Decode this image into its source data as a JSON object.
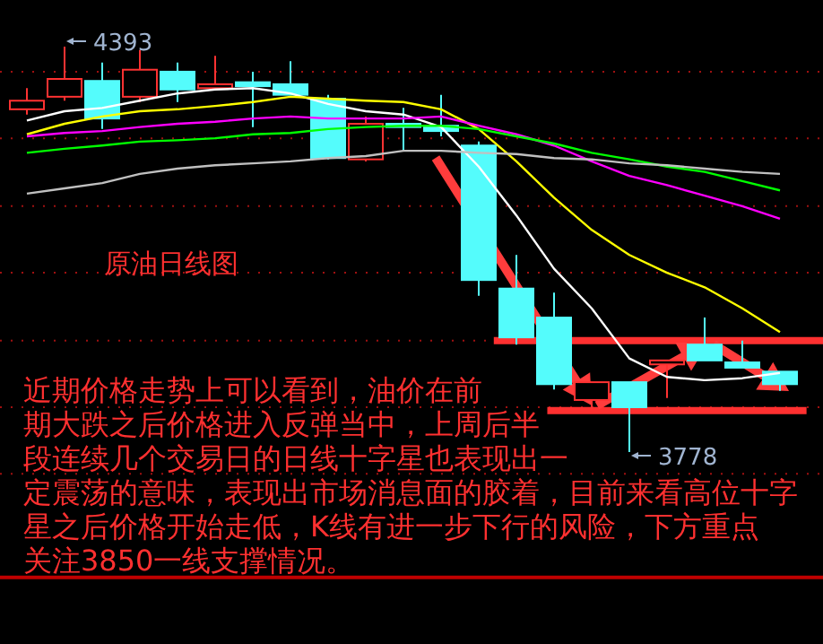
{
  "chart_data": {
    "type": "candlestick",
    "title": "原油日线图",
    "categories": [
      null,
      null,
      null,
      null,
      null,
      null,
      null,
      null,
      null,
      null,
      null,
      null,
      null,
      null,
      null,
      null,
      null,
      null,
      null,
      null,
      null
    ],
    "ohlc": [
      [
        4298,
        4330,
        4290,
        4311
      ],
      [
        4317,
        4393,
        4311,
        4344
      ],
      [
        4341,
        4369,
        4268,
        4284
      ],
      [
        4317,
        4388,
        4309,
        4358
      ],
      [
        4355,
        4369,
        4309,
        4328
      ],
      [
        4330,
        4379,
        4330,
        4336
      ],
      [
        4339,
        4355,
        4271,
        4333
      ],
      [
        4336,
        4371,
        4320,
        4320
      ],
      [
        4314,
        4320,
        4222,
        4224
      ],
      [
        4222,
        4287,
        4219,
        4276
      ],
      [
        4276,
        4300,
        4235,
        4271
      ],
      [
        4273,
        4320,
        4257,
        4265
      ],
      [
        4243,
        4249,
        4015,
        4039
      ],
      [
        4026,
        4077,
        3941,
        3952
      ],
      [
        3982,
        4020,
        3873,
        3881
      ],
      [
        3857,
        3884,
        3843,
        3884
      ],
      [
        3884,
        3884,
        3778,
        3846
      ],
      [
        3911,
        3917,
        3860,
        3917
      ],
      [
        3941,
        3982,
        3917,
        3917
      ],
      [
        3914,
        3947,
        3906,
        3906
      ],
      [
        3900,
        3900,
        3871,
        3881
      ]
    ],
    "colors": [
      "#ff3232",
      "#ff3232",
      "#54fcfc",
      "#ff3232",
      "#54fcfc",
      "#ff3232",
      "#54fcfc",
      "#54fcfc",
      "#54fcfc",
      "#ff3232",
      "#54fcfc",
      "#54fcfc",
      "#54fcfc",
      "#54fcfc",
      "#54fcfc",
      "#ff3232",
      "#54fcfc",
      "#ff3232",
      "#54fcfc",
      "#54fcfc",
      "#54fcfc"
    ],
    "series": [
      {
        "type": "line",
        "color": "#ffffff",
        "values": [
          4281,
          4295,
          4300,
          4311,
          4322,
          4328,
          4330,
          4322,
          4306,
          4295,
          4290,
          4271,
          4211,
          4137,
          4056,
          3996,
          3920,
          3892,
          3887,
          3890,
          3898
        ]
      },
      {
        "type": "line",
        "color": "#ffff00",
        "values": [
          4260,
          4276,
          4287,
          4295,
          4298,
          4303,
          4309,
          4317,
          4314,
          4311,
          4309,
          4298,
          4268,
          4219,
          4164,
          4115,
          4077,
          4050,
          4028,
          3996,
          3960
        ]
      },
      {
        "type": "line",
        "color": "#ff00ff",
        "values": [
          4257,
          4262,
          4265,
          4271,
          4276,
          4279,
          4284,
          4287,
          4284,
          4284,
          4284,
          4287,
          4273,
          4260,
          4243,
          4219,
          4197,
          4183,
          4167,
          4151,
          4132
        ]
      },
      {
        "type": "line",
        "color": "#00ff00",
        "values": [
          4232,
          4238,
          4243,
          4249,
          4251,
          4254,
          4260,
          4262,
          4268,
          4271,
          4273,
          4273,
          4268,
          4257,
          4246,
          4232,
          4222,
          4211,
          4203,
          4189,
          4175
        ]
      },
      {
        "type": "line",
        "color": "#c0c0c0",
        "values": [
          4170,
          4178,
          4186,
          4200,
          4208,
          4213,
          4216,
          4219,
          4224,
          4227,
          4235,
          4235,
          4232,
          4230,
          4224,
          4222,
          4216,
          4213,
          4208,
          4203,
          4200
        ]
      }
    ],
    "yticks": [
      {
        "value": 4355,
        "label": null
      },
      {
        "value": 4254,
        "label": null
      },
      {
        "value": 4151,
        "label": null
      },
      {
        "value": 4050,
        "label": null
      },
      {
        "value": 3947,
        "label": null
      },
      {
        "value": 3846,
        "label": null
      },
      {
        "value": 3745,
        "label": null
      }
    ],
    "grid": "y",
    "ref_lines": [
      {
        "axis": "y",
        "value": 3947,
        "color": "#ff3030"
      },
      {
        "axis": "y",
        "value": 3841,
        "color": "#ff3030"
      },
      {
        "axis": "y",
        "value": 3588,
        "color": "#c00000"
      }
    ],
    "annotations": [
      "4393",
      "3778",
      "近期价格走势上可以看到，油价在前期大跌之后价格进入反弹当中，上周后半段连续几个交易日的日线十字星也表现出一定震荡的意味，表现出市场消息面的胶着，目前来看高位十字星之后价格开始走低，K线有进一步下行的风险，下方重点关注3850一线支撑情况。"
    ]
  }
}
